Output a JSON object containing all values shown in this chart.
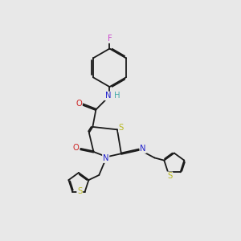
{
  "bg_color": "#e8e8e8",
  "bond_color": "#1a1a1a",
  "atom_colors": {
    "N": "#2020cc",
    "O": "#cc2020",
    "S": "#b8b820",
    "F": "#cc44cc",
    "H": "#44aaaa",
    "C": "#1a1a1a"
  },
  "font_size": 7.2,
  "bond_width": 1.3,
  "doffset": 0.06
}
